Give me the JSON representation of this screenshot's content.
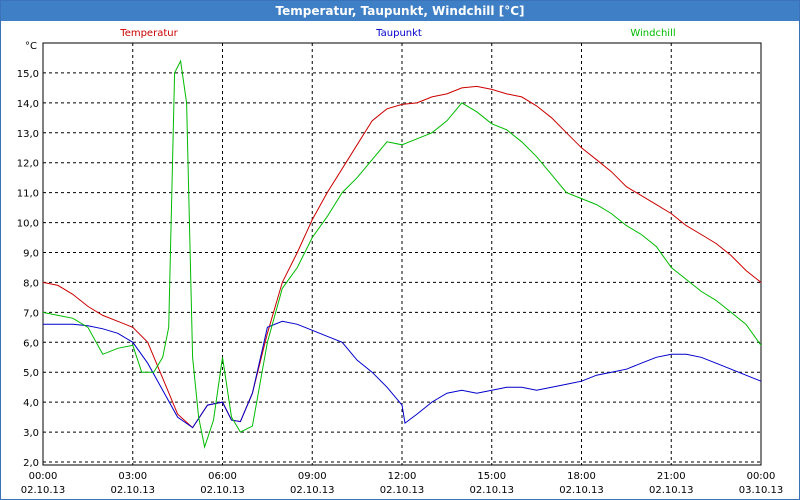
{
  "window": {
    "title": "Temperatur, Taupunkt, Windchill [°C]"
  },
  "chart_data": {
    "type": "line",
    "title": "Temperatur, Taupunkt, Windchill [°C]",
    "ylabel": "°C",
    "ylim": [
      1.9,
      16.0
    ],
    "xlim": [
      0,
      24
    ],
    "grid": true,
    "legend_placement": "top",
    "y_ticks": [
      "2,0",
      "3,0",
      "4,0",
      "5,0",
      "6,0",
      "7,0",
      "8,0",
      "9,0",
      "10,0",
      "11,0",
      "12,0",
      "13,0",
      "14,0",
      "15,0"
    ],
    "x_ticks": [
      {
        "time": "00:00",
        "date": "02.10.13"
      },
      {
        "time": "03:00",
        "date": "02.10.13"
      },
      {
        "time": "06:00",
        "date": "02.10.13"
      },
      {
        "time": "09:00",
        "date": "02.10.13"
      },
      {
        "time": "12:00",
        "date": "02.10.13"
      },
      {
        "time": "15:00",
        "date": "02.10.13"
      },
      {
        "time": "18:00",
        "date": "02.10.13"
      },
      {
        "time": "21:00",
        "date": "02.10.13"
      },
      {
        "time": "00:00",
        "date": "03.10.13"
      }
    ],
    "series": [
      {
        "name": "Temperatur",
        "color": "#cc0000",
        "points": [
          [
            0,
            8.0
          ],
          [
            0.5,
            7.9
          ],
          [
            1,
            7.6
          ],
          [
            1.5,
            7.2
          ],
          [
            2,
            6.9
          ],
          [
            2.5,
            6.7
          ],
          [
            3,
            6.5
          ],
          [
            3.5,
            6.0
          ],
          [
            4,
            4.8
          ],
          [
            4.5,
            3.6
          ],
          [
            5,
            3.15
          ],
          [
            5.5,
            3.9
          ],
          [
            6,
            4.0
          ],
          [
            6.3,
            3.4
          ],
          [
            6.6,
            3.35
          ],
          [
            7,
            4.3
          ],
          [
            7.5,
            6.3
          ],
          [
            8,
            8.0
          ],
          [
            8.5,
            9.0
          ],
          [
            9,
            10.1
          ],
          [
            9.5,
            11.0
          ],
          [
            10,
            11.8
          ],
          [
            10.5,
            12.6
          ],
          [
            11,
            13.4
          ],
          [
            11.5,
            13.8
          ],
          [
            12,
            13.95
          ],
          [
            12.5,
            14.0
          ],
          [
            13,
            14.2
          ],
          [
            13.5,
            14.3
          ],
          [
            14,
            14.5
          ],
          [
            14.5,
            14.55
          ],
          [
            15,
            14.45
          ],
          [
            15.5,
            14.3
          ],
          [
            16,
            14.2
          ],
          [
            16.5,
            13.9
          ],
          [
            17,
            13.5
          ],
          [
            17.5,
            13.0
          ],
          [
            18,
            12.5
          ],
          [
            18.5,
            12.1
          ],
          [
            19,
            11.7
          ],
          [
            19.5,
            11.2
          ],
          [
            20,
            10.9
          ],
          [
            20.5,
            10.6
          ],
          [
            21,
            10.3
          ],
          [
            21.5,
            9.9
          ],
          [
            22,
            9.6
          ],
          [
            22.5,
            9.3
          ],
          [
            23,
            8.9
          ],
          [
            23.5,
            8.4
          ],
          [
            24,
            8.0
          ]
        ]
      },
      {
        "name": "Taupunkt",
        "color": "#0000cc",
        "points": [
          [
            0,
            6.6
          ],
          [
            0.5,
            6.6
          ],
          [
            1,
            6.6
          ],
          [
            1.5,
            6.55
          ],
          [
            2,
            6.45
          ],
          [
            2.5,
            6.3
          ],
          [
            3,
            6.0
          ],
          [
            3.5,
            5.3
          ],
          [
            4,
            4.4
          ],
          [
            4.5,
            3.5
          ],
          [
            5,
            3.15
          ],
          [
            5.5,
            3.9
          ],
          [
            6,
            4.0
          ],
          [
            6.3,
            3.4
          ],
          [
            6.6,
            3.35
          ],
          [
            7,
            4.3
          ],
          [
            7.5,
            6.5
          ],
          [
            8,
            6.7
          ],
          [
            8.5,
            6.6
          ],
          [
            9,
            6.4
          ],
          [
            9.5,
            6.2
          ],
          [
            10,
            6.0
          ],
          [
            10.5,
            5.4
          ],
          [
            11,
            5.0
          ],
          [
            11.5,
            4.5
          ],
          [
            12,
            3.9
          ],
          [
            12.1,
            3.3
          ],
          [
            12.5,
            3.6
          ],
          [
            13,
            4.0
          ],
          [
            13.5,
            4.3
          ],
          [
            14,
            4.4
          ],
          [
            14.5,
            4.3
          ],
          [
            15,
            4.4
          ],
          [
            15.5,
            4.5
          ],
          [
            16,
            4.5
          ],
          [
            16.5,
            4.4
          ],
          [
            17,
            4.5
          ],
          [
            17.5,
            4.6
          ],
          [
            18,
            4.7
          ],
          [
            18.5,
            4.9
          ],
          [
            19,
            5.0
          ],
          [
            19.5,
            5.1
          ],
          [
            20,
            5.3
          ],
          [
            20.5,
            5.5
          ],
          [
            21,
            5.6
          ],
          [
            21.5,
            5.6
          ],
          [
            22,
            5.5
          ],
          [
            22.5,
            5.3
          ],
          [
            23,
            5.1
          ],
          [
            23.5,
            4.9
          ],
          [
            24,
            4.7
          ]
        ]
      },
      {
        "name": "Windchill",
        "color": "#00bb00",
        "points": [
          [
            0,
            7.0
          ],
          [
            0.5,
            6.9
          ],
          [
            1,
            6.8
          ],
          [
            1.5,
            6.5
          ],
          [
            2,
            5.6
          ],
          [
            2.5,
            5.8
          ],
          [
            3,
            5.9
          ],
          [
            3.3,
            5.0
          ],
          [
            3.7,
            5.0
          ],
          [
            4.0,
            5.5
          ],
          [
            4.2,
            6.5
          ],
          [
            4.4,
            15.0
          ],
          [
            4.6,
            15.4
          ],
          [
            4.8,
            14.0
          ],
          [
            5.0,
            5.5
          ],
          [
            5.2,
            3.5
          ],
          [
            5.4,
            2.5
          ],
          [
            5.7,
            3.4
          ],
          [
            6.0,
            5.5
          ],
          [
            6.3,
            3.5
          ],
          [
            6.6,
            3.0
          ],
          [
            7.0,
            3.2
          ],
          [
            7.5,
            6.0
          ],
          [
            8,
            7.8
          ],
          [
            8.5,
            8.5
          ],
          [
            9,
            9.5
          ],
          [
            9.5,
            10.2
          ],
          [
            10,
            11.0
          ],
          [
            10.5,
            11.5
          ],
          [
            11,
            12.1
          ],
          [
            11.5,
            12.7
          ],
          [
            12,
            12.6
          ],
          [
            12.5,
            12.8
          ],
          [
            13,
            13.0
          ],
          [
            13.5,
            13.4
          ],
          [
            14,
            14.0
          ],
          [
            14.5,
            13.7
          ],
          [
            15,
            13.3
          ],
          [
            15.5,
            13.1
          ],
          [
            16,
            12.7
          ],
          [
            16.5,
            12.2
          ],
          [
            17,
            11.6
          ],
          [
            17.5,
            11.0
          ],
          [
            18,
            10.8
          ],
          [
            18.5,
            10.6
          ],
          [
            19,
            10.3
          ],
          [
            19.5,
            9.9
          ],
          [
            20,
            9.6
          ],
          [
            20.5,
            9.2
          ],
          [
            21,
            8.5
          ],
          [
            21.5,
            8.1
          ],
          [
            22,
            7.7
          ],
          [
            22.5,
            7.4
          ],
          [
            23,
            7.0
          ],
          [
            23.5,
            6.6
          ],
          [
            24,
            5.9
          ]
        ]
      }
    ]
  }
}
